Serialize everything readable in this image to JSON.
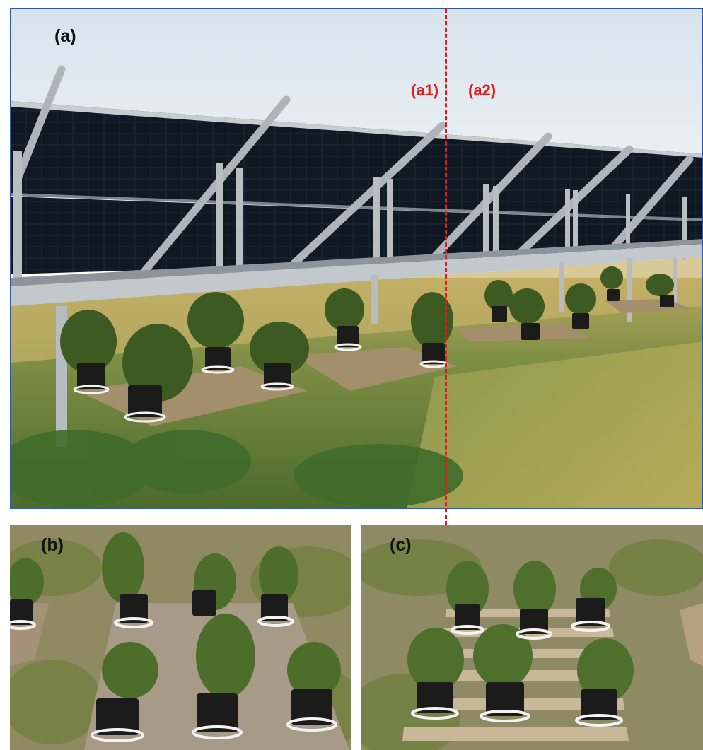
{
  "figure": {
    "panel_a_label": "(a)",
    "panel_b_label": "(b)",
    "panel_c_label": "(c)",
    "zone_labels": {
      "a1": "(a1)",
      "a2": "(a2)"
    }
  },
  "colors": {
    "sky": "#dfe8ef",
    "panel_frame": "#9fa5ab",
    "solar_cell": "#16202c",
    "grass_dry": "#c9b56a",
    "grass_green": "#5f7d3a",
    "wood": "#a89474",
    "pot": "#1b1b1b",
    "divider": "#e01b1b",
    "border": "#2f5aa8"
  }
}
